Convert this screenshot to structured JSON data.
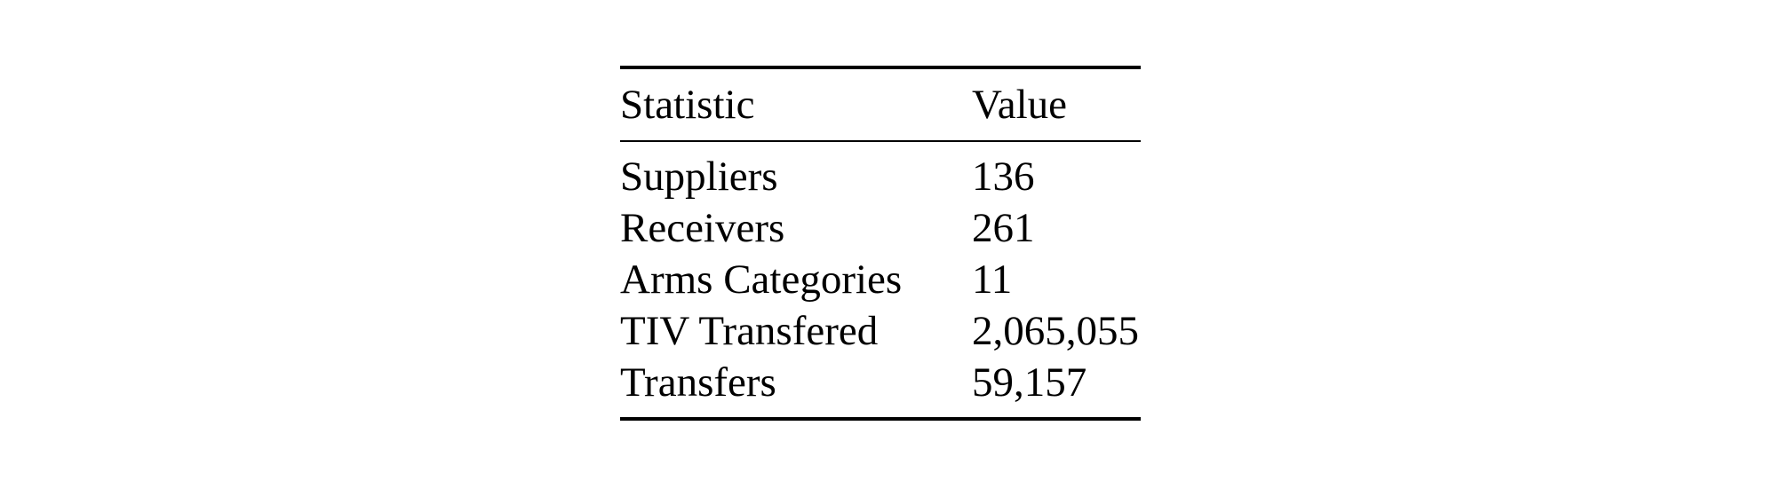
{
  "table": {
    "headers": {
      "statistic": "Statistic",
      "value": "Value"
    },
    "rows": [
      {
        "statistic": "Suppliers",
        "value": "136"
      },
      {
        "statistic": "Receivers",
        "value": "261"
      },
      {
        "statistic": "Arms Categories",
        "value": "11"
      },
      {
        "statistic": "TIV Transfered",
        "value": "2,065,055"
      },
      {
        "statistic": "Transfers",
        "value": "59,157"
      }
    ]
  }
}
